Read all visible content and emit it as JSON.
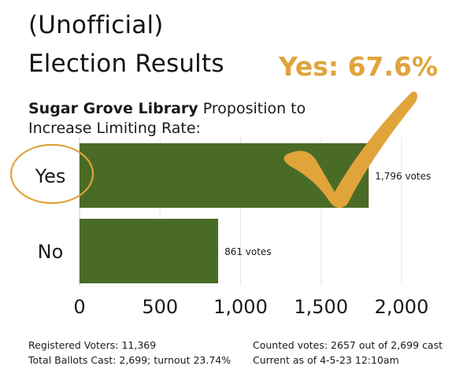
{
  "title": {
    "line1": "(Unofficial)",
    "line2": "Election Results"
  },
  "headline": "Yes: 67.6%",
  "subtitle": {
    "library": "Sugar Grove Library",
    "text_rest": " Proposition to",
    "line2": "Increase Limiting Rate:"
  },
  "colors": {
    "bar": "#4a6b26",
    "accent": "#e0a43a",
    "grid": "#e6e6e6",
    "text": "#1a1a1a"
  },
  "chart_data": {
    "type": "bar",
    "orientation": "horizontal",
    "categories": [
      "Yes",
      "No"
    ],
    "values": [
      1796,
      861
    ],
    "value_labels": [
      "1,796 votes",
      "861 votes"
    ],
    "xlim": [
      0,
      2000
    ],
    "xticks": [
      0,
      500,
      1000,
      1500,
      2000
    ],
    "xtick_labels": [
      "0",
      "500",
      "1,000",
      "1,500",
      "2,000"
    ],
    "grid": true,
    "highlight_category": "Yes"
  },
  "footer": {
    "left": [
      "Registered Voters: 11,369",
      "Total Ballots Cast: 2,699; turnout 23.74%"
    ],
    "right": [
      "Counted votes:  2657 out of 2,699 cast",
      "Current as of 4-5-23 12:10am"
    ]
  }
}
